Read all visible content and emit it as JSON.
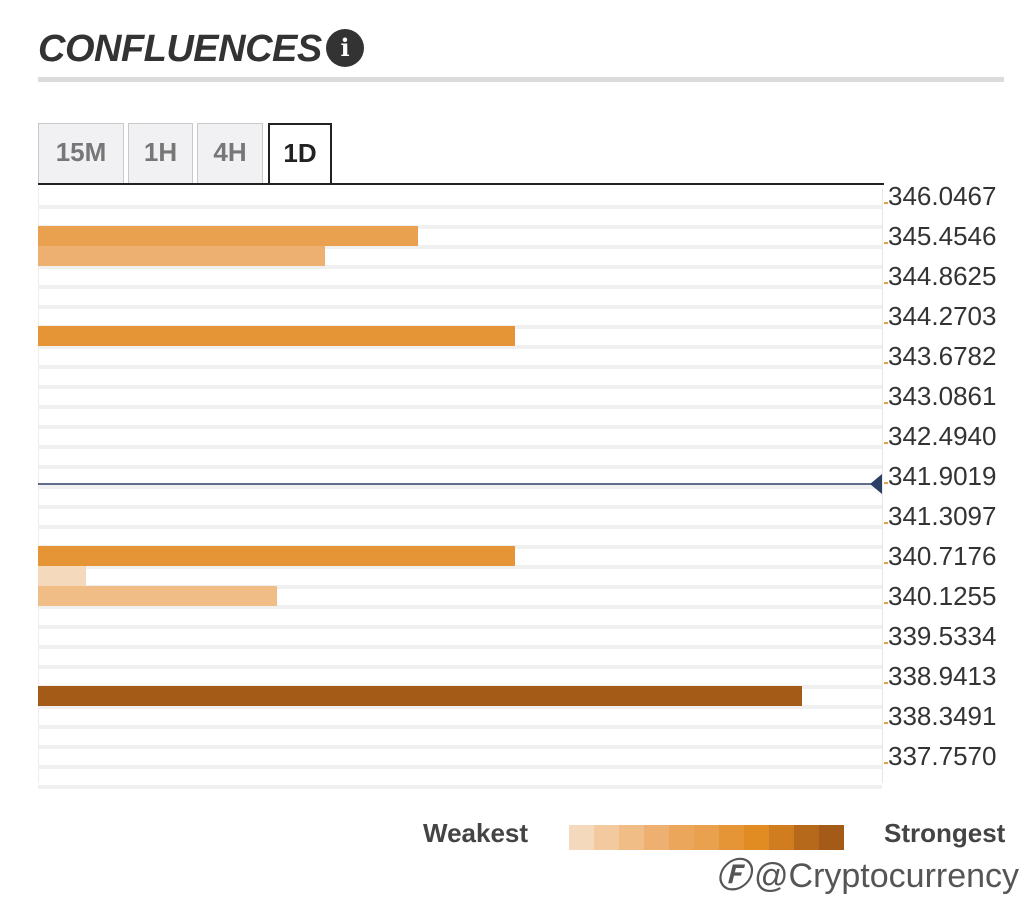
{
  "header": {
    "title": "CONFLUENCES",
    "info_icon": "info-icon"
  },
  "tabs": [
    {
      "label": "15M",
      "active": false
    },
    {
      "label": "1H",
      "active": false
    },
    {
      "label": "4H",
      "active": false
    },
    {
      "label": "1D",
      "active": true
    }
  ],
  "colors": {
    "scale": [
      "#f5d9bd",
      "#f3ca9f",
      "#f1bd87",
      "#eeb070",
      "#eca65c",
      "#e9a04f",
      "#e69536",
      "#e08c23",
      "#cf7d1f",
      "#b6691b",
      "#a45b18"
    ],
    "current_price_line": "#2c3e66"
  },
  "chart_data": {
    "type": "bar",
    "price_levels": [
      "346.0467",
      "345.4546",
      "344.8625",
      "344.2703",
      "343.6782",
      "343.0861",
      "342.4940",
      "341.9019",
      "341.3097",
      "340.7176",
      "340.1255",
      "339.5334",
      "338.9413",
      "338.3491",
      "337.7570"
    ],
    "current_price": "341.9019",
    "bars": [
      {
        "level_index": 0.5,
        "value": 0.45,
        "strength": 5
      },
      {
        "level_index": 1.0,
        "value": 0.34,
        "strength": 3
      },
      {
        "level_index": 3.0,
        "value": 0.565,
        "strength": 6
      },
      {
        "level_index": 8.5,
        "value": 0.565,
        "strength": 6
      },
      {
        "level_index": 9.0,
        "value": 0.057,
        "strength": 0
      },
      {
        "level_index": 9.5,
        "value": 0.283,
        "strength": 2
      },
      {
        "level_index": 12.0,
        "value": 0.905,
        "strength": 10
      }
    ]
  },
  "legend": {
    "weakest_label": "Weakest",
    "strongest_label": "Strongest"
  },
  "watermark": {
    "logo": "Ⓕ",
    "text": "@Cryptocurrency"
  }
}
